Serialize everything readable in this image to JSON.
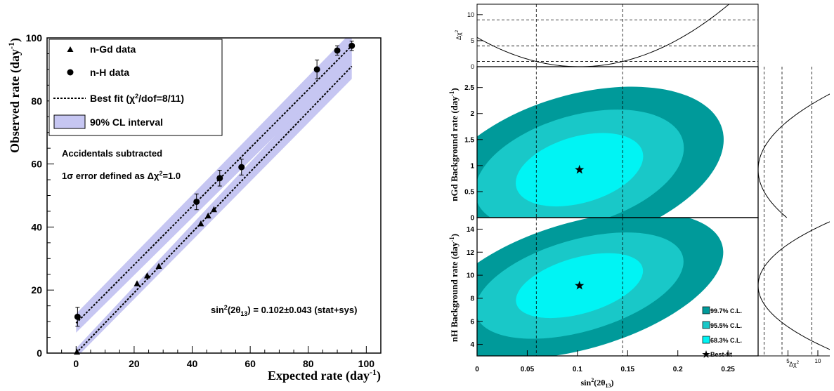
{
  "chart_data": [
    {
      "type": "scatter",
      "xlabel": "Expected rate (day",
      "xlabel_sup": "-1",
      "xlabel_end": ")",
      "ylabel": "Observed rate (day",
      "ylabel_sup": "-1",
      "ylabel_end": ")",
      "xlim": [
        -10,
        105
      ],
      "ylim": [
        0,
        100
      ],
      "x_ticks": [
        0,
        20,
        40,
        60,
        80,
        100
      ],
      "y_ticks": [
        0,
        20,
        40,
        60,
        80,
        100
      ],
      "legend": [
        {
          "key": "ngd",
          "label": "n-Gd data",
          "marker": "triangle"
        },
        {
          "key": "nh",
          "label": "n-H data",
          "marker": "circle"
        },
        {
          "key": "fit",
          "label_pre": "Best fit (χ",
          "label_sup": "2",
          "label_post": "/dof=8/11)",
          "marker": "dashed-line"
        },
        {
          "key": "band",
          "label": "90% CL interval",
          "marker": "box",
          "color": "#c6c6f2"
        }
      ],
      "legend_position": "top-left",
      "annotations": {
        "line1": "Accidentals subtracted",
        "line2_pre": "1σ error defined as Δχ",
        "line2_sup": "2",
        "line2_post": "=1.0",
        "result_pre": "sin",
        "result_sup": "2",
        "result_mid": "(2θ",
        "result_sub": "13",
        "result_post": ") = 0.102±0.043 (stat+sys)"
      },
      "series": [
        {
          "name": "n-Gd data",
          "marker": "triangle",
          "points": [
            [
              0.3,
              0.3
            ],
            [
              21,
              22
            ],
            [
              24.5,
              24.5
            ],
            [
              28.5,
              27.5
            ],
            [
              43,
              41
            ],
            [
              45.5,
              43.5
            ],
            [
              47.5,
              45.5
            ]
          ]
        },
        {
          "name": "n-H data",
          "marker": "circle",
          "points": [
            [
              0.5,
              11.5
            ],
            [
              41.5,
              48
            ],
            [
              49.5,
              55.5
            ],
            [
              57,
              59
            ],
            [
              83,
              90
            ],
            [
              90,
              96
            ],
            [
              95,
              97.5
            ]
          ],
          "errors": [
            3,
            2.5,
            2.5,
            2.5,
            3,
            1.5,
            1.5
          ]
        }
      ],
      "fit_lines": [
        {
          "name": "n-Gd fit",
          "x": [
            0,
            95
          ],
          "y": [
            0,
            91
          ]
        },
        {
          "name": "n-H fit",
          "x": [
            0,
            95
          ],
          "y": [
            9.5,
            97.5
          ]
        }
      ],
      "bands": [
        {
          "x": [
            0,
            95
          ],
          "y_lower": [
            -1.5,
            87
          ],
          "y_upper": [
            1.5,
            95
          ]
        },
        {
          "x": [
            0,
            95
          ],
          "y_lower": [
            6.5,
            93
          ],
          "y_upper": [
            12.5,
            102
          ]
        }
      ],
      "band_color": "#c6c6f2"
    },
    {
      "type": "line",
      "panel": "top-delta-chi2",
      "ylabel": "Δχ",
      "ylabel_sup": "2",
      "xlim": [
        0,
        0.28
      ],
      "ylim": [
        0,
        12
      ],
      "y_ticks": [
        0,
        5,
        10
      ],
      "curve": {
        "formula": "(s-0.102)^2/0.043^2",
        "x_range": [
          0,
          0.3
        ]
      },
      "reference_lines": [
        1,
        4,
        9
      ]
    },
    {
      "type": "contour",
      "panel": "nGd-background-vs-sin2",
      "ylabel": "nGd Background rate (day",
      "ylabel_sup": "-1",
      "ylabel_end": ")",
      "xlim": [
        0,
        0.28
      ],
      "ylim": [
        0,
        2.9
      ],
      "y_ticks": [
        0,
        0.5,
        1,
        1.5,
        2,
        2.5
      ],
      "best_fit": [
        0.102,
        0.92
      ],
      "contour_colors": [
        "#009a9a",
        "#19c8c8",
        "#00f4f4"
      ],
      "vertical_lines": [
        0.059,
        0.145
      ],
      "sigma_x": 0.043,
      "sigma_y": 0.42
    },
    {
      "type": "contour",
      "panel": "nH-background-vs-sin2",
      "xlabel": "sin",
      "xlabel_sup": "2",
      "xlabel_mid": "(2θ",
      "xlabel_sub": "13",
      "xlabel_end": ")",
      "ylabel": "nH Background rate (day",
      "ylabel_sup": "-1",
      "ylabel_end": ")",
      "xlim": [
        0,
        0.28
      ],
      "ylim": [
        3,
        15
      ],
      "x_ticks": [
        0,
        0.05,
        0.1,
        0.15,
        0.2,
        0.25
      ],
      "y_ticks": [
        4,
        6,
        8,
        10,
        12,
        14
      ],
      "best_fit": [
        0.102,
        9.1
      ],
      "contour_colors": [
        "#009a9a",
        "#19c8c8",
        "#00f4f4"
      ],
      "legend": [
        {
          "label": "99.7% C.L.",
          "color": "#009a9a"
        },
        {
          "label": "95.5% C.L.",
          "color": "#19c8c8"
        },
        {
          "label": "68.3% C.L.",
          "color": "#00f4f4"
        },
        {
          "label": "Best-fit",
          "marker": "star"
        }
      ],
      "vertical_lines": [
        0.059,
        0.145
      ],
      "sigma_x": 0.043,
      "sigma_y": 1.6
    },
    {
      "type": "line",
      "panel": "right-delta-chi2",
      "xlabel": "Δχ",
      "xlabel_sup": "2",
      "x_ticks": [
        5,
        10
      ],
      "xlim": [
        0,
        12
      ],
      "reference_lines": [
        1,
        4,
        9
      ]
    }
  ]
}
